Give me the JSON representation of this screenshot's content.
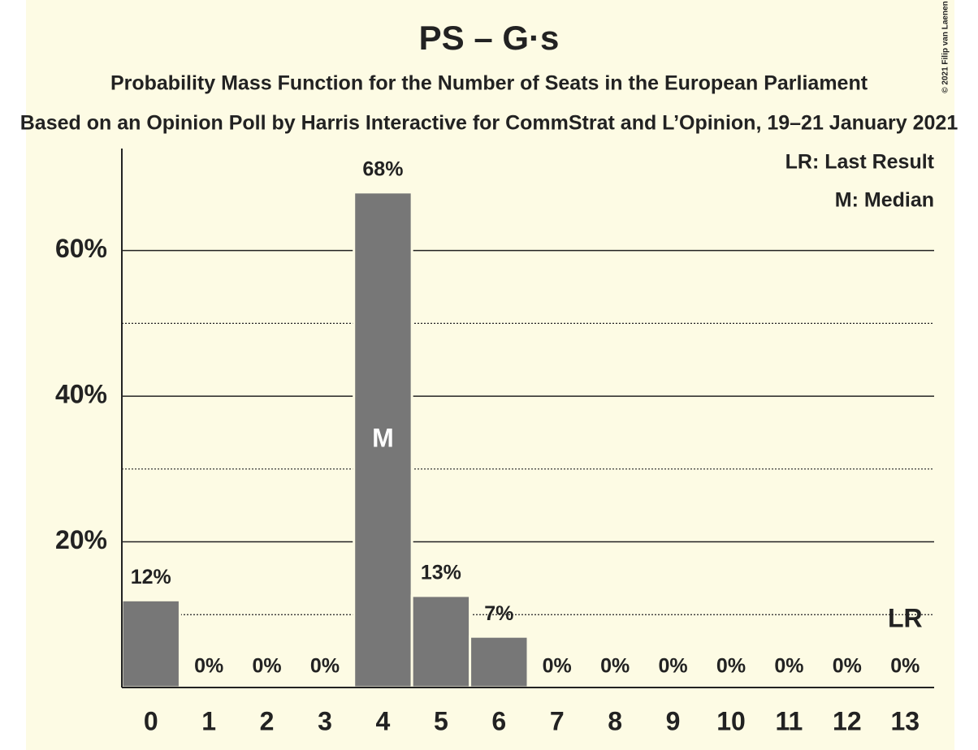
{
  "chart_data": {
    "type": "bar",
    "title": "PS – G·s",
    "subtitle": "Probability Mass Function for the Number of Seats in the European Parliament",
    "subtitle2": "Based on an Opinion Poll by Harris Interactive for CommStrat and L’Opinion, 19–21 January 2021",
    "copyright": "© 2021 Filip van Laenen",
    "categories": [
      "0",
      "1",
      "2",
      "3",
      "4",
      "5",
      "6",
      "7",
      "8",
      "9",
      "10",
      "11",
      "12",
      "13"
    ],
    "values": [
      12,
      0,
      0,
      0,
      68,
      12.6,
      7,
      0,
      0,
      0,
      0,
      0,
      0,
      0
    ],
    "value_labels": [
      "12%",
      "0%",
      "0%",
      "0%",
      "68%",
      "13%",
      "7%",
      "0%",
      "0%",
      "0%",
      "0%",
      "0%",
      "0%",
      "0%"
    ],
    "color": "#777777",
    "ylim": [
      0,
      74
    ],
    "yticks": [
      {
        "value": 20,
        "label": "20%"
      },
      {
        "value": 40,
        "label": "40%"
      },
      {
        "value": 60,
        "label": "60%"
      }
    ],
    "minor_gridlines": [
      10,
      30,
      50
    ],
    "grid": true,
    "median": {
      "index": 4,
      "label": "M"
    },
    "last_result": {
      "index": 13,
      "label": "LR"
    },
    "legend": [
      "LR: Last Result",
      "M: Median"
    ]
  }
}
